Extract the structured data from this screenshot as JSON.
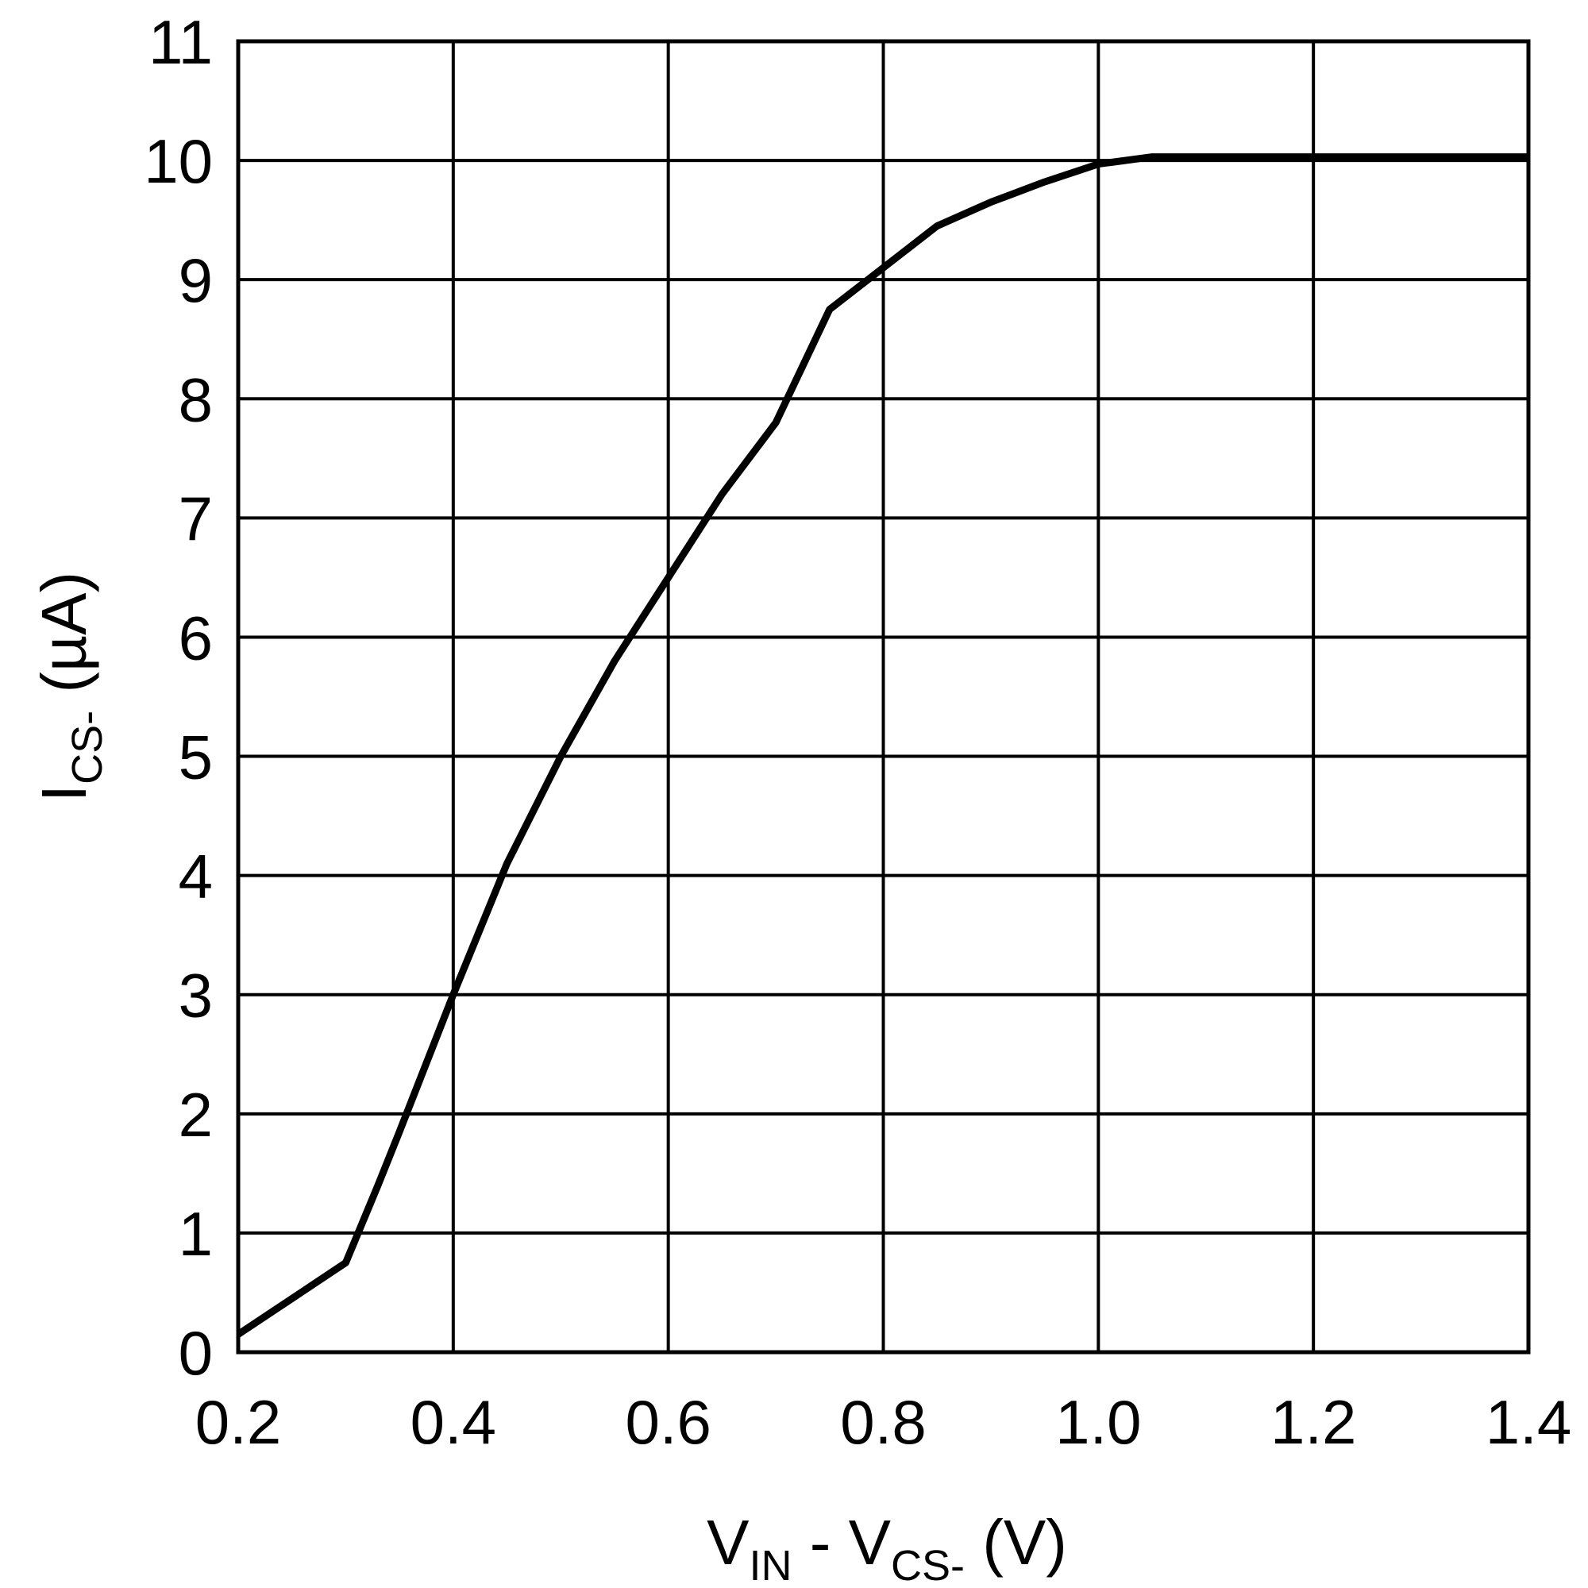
{
  "chart_data": {
    "type": "line",
    "xlabel": {
      "main": "V",
      "sub1": "IN",
      "mid": " - V",
      "sub2": "CS-",
      "unit": " (V)"
    },
    "ylabel": {
      "main": "I",
      "sub": "CS-",
      "unit": " (µA)"
    },
    "xlim": [
      0.2,
      1.4
    ],
    "ylim": [
      0,
      11
    ],
    "x_ticks": [
      "0.2",
      "0.4",
      "0.6",
      "0.8",
      "1.0",
      "1.2",
      "1.4"
    ],
    "y_ticks": [
      "0",
      "1",
      "2",
      "3",
      "4",
      "5",
      "6",
      "7",
      "8",
      "9",
      "10",
      "11"
    ],
    "grid": true,
    "series": [
      {
        "color": "#000000",
        "points": [
          [
            0.2,
            0.15
          ],
          [
            0.25,
            0.45
          ],
          [
            0.3,
            0.75
          ],
          [
            0.33,
            1.4
          ],
          [
            0.35,
            1.85
          ],
          [
            0.4,
            3.0
          ],
          [
            0.45,
            4.1
          ],
          [
            0.5,
            5.0
          ],
          [
            0.55,
            5.8
          ],
          [
            0.6,
            6.5
          ],
          [
            0.65,
            7.2
          ],
          [
            0.7,
            7.8
          ],
          [
            0.75,
            8.75
          ],
          [
            0.8,
            9.1
          ],
          [
            0.85,
            9.45
          ],
          [
            0.9,
            9.65
          ],
          [
            0.95,
            9.82
          ],
          [
            1.0,
            9.97
          ],
          [
            1.05,
            10.03
          ],
          [
            1.1,
            10.03
          ],
          [
            1.2,
            10.03
          ],
          [
            1.4,
            10.03
          ]
        ]
      }
    ]
  }
}
